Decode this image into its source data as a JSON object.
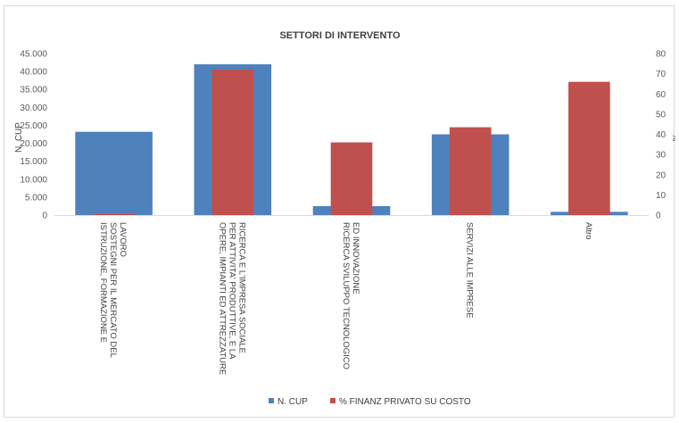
{
  "chart_data": {
    "type": "bar",
    "title": "SETTORI DI INTERVENTO",
    "categories": [
      "ISTRUZIONE, FORMAZIONE E SOSTEGNI PER IL MERCATO DEL LAVORO",
      "OPERE, IMPIANTI ED ATTREZZATURE PER ATTIVITA' PRODUTTIVE, E LA RICERCA E L'IMPRESA SOCIALE",
      "RICERCA SVILUPPO TECNOLOGICO ED INNOVAZIONE",
      "SERVIZI ALLE IMPRESE",
      "Altro"
    ],
    "category_lines": [
      [
        "ISTRUZIONE, FORMAZIONE E",
        "SOSTEGNI PER IL MERCATO DEL",
        "LAVORO"
      ],
      [
        "OPERE, IMPIANTI ED ATTREZZATURE",
        "PER ATTIVITA' PRODUTTIVE, E LA",
        "RICERCA E L'IMPRESA SOCIALE"
      ],
      [
        "RICERCA SVILUPPO TECNOLOGICO",
        "ED INNOVAZIONE"
      ],
      [
        "SERVIZI ALLE IMPRESE"
      ],
      [
        "Altro"
      ]
    ],
    "series": [
      {
        "name": "N. CUP",
        "axis": "left",
        "color": "#4F81BD",
        "values": [
          23200,
          42000,
          2500,
          22500,
          900
        ]
      },
      {
        "name": "% FINANZ PRIVATO SU COSTO",
        "axis": "right",
        "color": "#C0504D",
        "values": [
          0.5,
          72,
          36,
          43.5,
          66
        ]
      }
    ],
    "ylabel": "N. CUP",
    "ylabel_right": "%",
    "ylim": [
      0,
      45000
    ],
    "ylim_right": [
      0,
      80
    ],
    "yticks": [
      "0",
      "5.000",
      "10.000",
      "15.000",
      "20.000",
      "25.000",
      "30.000",
      "35.000",
      "40.000",
      "45.000"
    ],
    "yticks_right": [
      "0",
      "10",
      "20",
      "30",
      "40",
      "50",
      "60",
      "70",
      "80"
    ],
    "grid": false,
    "legend_position": "bottom"
  }
}
